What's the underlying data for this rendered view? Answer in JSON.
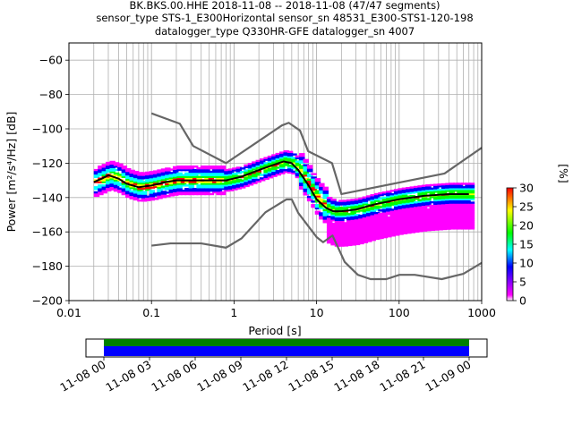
{
  "chart_data": {
    "type": "heatmap",
    "title_lines": [
      "BK.BKS.00.HHE   2018-11-08 -- 2018-11-08  (47/47 segments)",
      "sensor_type STS-1_E300Horizontal sensor_sn 48531_E300-STS1-120-198",
      "datalogger_type Q330HR-GFE datalogger_sn 4007"
    ],
    "xlabel": "Period [s]",
    "ylabel": "Power [m²/s⁴/Hz] [dB]",
    "xscale": "log",
    "xlim": [
      0.01,
      1000
    ],
    "ylim": [
      -200,
      -50
    ],
    "x_ticks": [
      0.01,
      0.1,
      1,
      10,
      100,
      1000
    ],
    "x_tick_labels": [
      "0.01",
      "0.1",
      "1",
      "10",
      "100",
      "1000"
    ],
    "y_ticks": [
      -200,
      -180,
      -160,
      -140,
      -120,
      -100,
      -80,
      -60
    ],
    "y_tick_labels": [
      "−200",
      "−180",
      "−160",
      "−140",
      "−120",
      "−100",
      "−80",
      "−60"
    ],
    "grid": true,
    "colorbar": {
      "label": "[%]",
      "min": 0,
      "max": 30,
      "ticks": [
        0,
        5,
        10,
        15,
        20,
        25,
        30
      ],
      "tick_labels": [
        "0",
        "5",
        "10",
        "15",
        "20",
        "25",
        "30"
      ],
      "colormap": [
        "#ffffff",
        "#ff00ff",
        "#0000ff",
        "#00ffff",
        "#00ff00",
        "#ffff00",
        "#ff0000"
      ]
    },
    "series": [
      {
        "role": "high-noise-model",
        "color": "#666666",
        "points": [
          [
            0.1,
            -91
          ],
          [
            0.22,
            -97
          ],
          [
            0.32,
            -110
          ],
          [
            0.8,
            -120
          ],
          [
            3.8,
            -98
          ],
          [
            4.6,
            -96.5
          ],
          [
            6.3,
            -101
          ],
          [
            7.9,
            -113
          ],
          [
            15.4,
            -120
          ],
          [
            20,
            -138
          ],
          [
            354.8,
            -126
          ],
          [
            1000,
            -111
          ]
        ]
      },
      {
        "role": "low-noise-model",
        "color": "#666666",
        "points": [
          [
            0.1,
            -168
          ],
          [
            0.17,
            -166.7
          ],
          [
            0.4,
            -166.7
          ],
          [
            0.8,
            -169.2
          ],
          [
            1.24,
            -163.7
          ],
          [
            2.4,
            -148.6
          ],
          [
            4.3,
            -141.1
          ],
          [
            5,
            -141.1
          ],
          [
            6,
            -149
          ],
          [
            10,
            -163
          ],
          [
            12,
            -166
          ],
          [
            15.6,
            -162.1
          ],
          [
            21.9,
            -177.5
          ],
          [
            31.6,
            -185
          ],
          [
            45,
            -187.5
          ],
          [
            70,
            -187.5
          ],
          [
            101,
            -185
          ],
          [
            154.5,
            -185
          ],
          [
            328.4,
            -187.5
          ],
          [
            600,
            -184.4
          ],
          [
            1000,
            -178
          ]
        ]
      },
      {
        "role": "mean-psd",
        "color": "#000000",
        "points": [
          [
            0.02,
            -131
          ],
          [
            0.025,
            -129
          ],
          [
            0.03,
            -127
          ],
          [
            0.04,
            -129
          ],
          [
            0.05,
            -132
          ],
          [
            0.07,
            -134
          ],
          [
            0.1,
            -133
          ],
          [
            0.15,
            -131
          ],
          [
            0.2,
            -130
          ],
          [
            0.3,
            -130
          ],
          [
            0.5,
            -130
          ],
          [
            0.8,
            -130
          ],
          [
            1.2,
            -128
          ],
          [
            2,
            -124
          ],
          [
            3,
            -121
          ],
          [
            4,
            -119
          ],
          [
            5,
            -120
          ],
          [
            6,
            -124
          ],
          [
            8,
            -133
          ],
          [
            10,
            -141
          ],
          [
            13,
            -146
          ],
          [
            16,
            -148
          ],
          [
            20,
            -148
          ],
          [
            30,
            -147
          ],
          [
            50,
            -144
          ],
          [
            100,
            -141
          ],
          [
            200,
            -139
          ],
          [
            400,
            -138
          ],
          [
            700,
            -138
          ]
        ]
      }
    ],
    "density_bands": [
      {
        "xmin": 0.02,
        "xmax": 0.7,
        "ymin": -138,
        "ymax": -122
      },
      {
        "xmin": 0.7,
        "xmax": 6,
        "ymin": -135,
        "ymax": -116
      },
      {
        "xmin": 6,
        "xmax": 12,
        "ymin": -146,
        "ymax": -125
      },
      {
        "xmin": 12,
        "xmax": 700,
        "ymin": -170,
        "ymax": -131
      }
    ],
    "timeline": {
      "ticks": [
        "11-08 00",
        "11-08 03",
        "11-08 06",
        "11-08 09",
        "11-08 12",
        "11-08 15",
        "11-08 18",
        "11-08 21",
        "11-09 00"
      ],
      "coverage_colors": [
        "#008000",
        "#0000ff"
      ]
    }
  }
}
